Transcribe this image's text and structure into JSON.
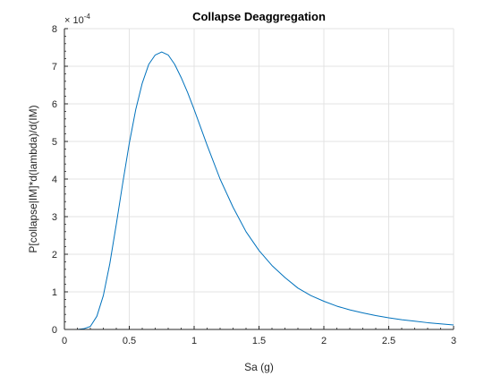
{
  "chart_data": {
    "type": "line",
    "title": "Collapse Deaggregation",
    "xlabel": "Sa (g)",
    "ylabel": "P[collapse|IM]*d(lambda)/d(IM)",
    "y_exponent_label": "× 10",
    "y_exponent_power": "-4",
    "xlim": [
      0,
      3
    ],
    "ylim": [
      0,
      8
    ],
    "x_ticks": [
      0,
      0.5,
      1,
      1.5,
      2,
      2.5,
      3
    ],
    "x_tick_labels": [
      "0",
      "0.5",
      "1",
      "1.5",
      "2",
      "2.5",
      "3"
    ],
    "y_ticks": [
      0,
      1,
      2,
      3,
      4,
      5,
      6,
      7,
      8
    ],
    "y_tick_labels": [
      "0",
      "1",
      "2",
      "3",
      "4",
      "5",
      "6",
      "7",
      "8"
    ],
    "grid": true,
    "line_color": "#0072bd",
    "series": [
      {
        "x": [
          0.1,
          0.15,
          0.2,
          0.25,
          0.3,
          0.35,
          0.4,
          0.45,
          0.5,
          0.55,
          0.6,
          0.65,
          0.7,
          0.75,
          0.8,
          0.85,
          0.9,
          0.95,
          1.0,
          1.1,
          1.2,
          1.3,
          1.4,
          1.5,
          1.6,
          1.7,
          1.8,
          1.9,
          2.0,
          2.1,
          2.2,
          2.3,
          2.4,
          2.5,
          2.6,
          2.7,
          2.8,
          2.9,
          3.0
        ],
        "y": [
          0.0,
          0.02,
          0.08,
          0.35,
          0.9,
          1.75,
          2.8,
          3.9,
          4.95,
          5.85,
          6.55,
          7.05,
          7.3,
          7.38,
          7.3,
          7.05,
          6.7,
          6.3,
          5.85,
          4.9,
          4.0,
          3.25,
          2.6,
          2.1,
          1.7,
          1.38,
          1.1,
          0.9,
          0.75,
          0.62,
          0.52,
          0.44,
          0.37,
          0.31,
          0.26,
          0.22,
          0.18,
          0.15,
          0.12
        ]
      }
    ]
  }
}
